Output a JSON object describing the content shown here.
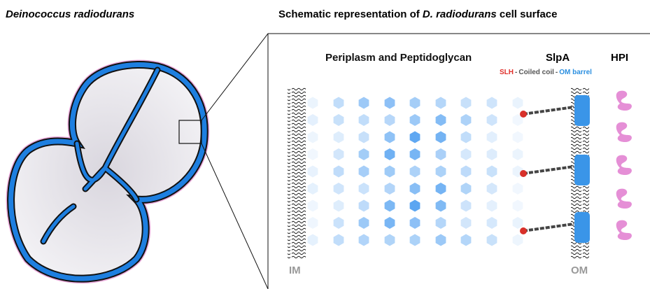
{
  "left_panel": {
    "title": "Deinococcus radiodurans"
  },
  "right_panel": {
    "title": {
      "before": "Schematic representation of ",
      "italic": "D. radiodurans",
      "after": " cell surface"
    },
    "region_label": "Periplasm and Peptidoglycan",
    "protein_labels": [
      "SlpA",
      "HPI"
    ],
    "legend": [
      {
        "text": "SLH",
        "color": "#e0302b"
      },
      {
        "text": "-",
        "color": "#555555"
      },
      {
        "text": "Coiled coil",
        "color": "#555555"
      },
      {
        "text": "-",
        "color": "#555555"
      },
      {
        "text": "OM barrel",
        "color": "#2b8fe0"
      }
    ],
    "membrane_labels": [
      "IM",
      "OM"
    ]
  }
}
